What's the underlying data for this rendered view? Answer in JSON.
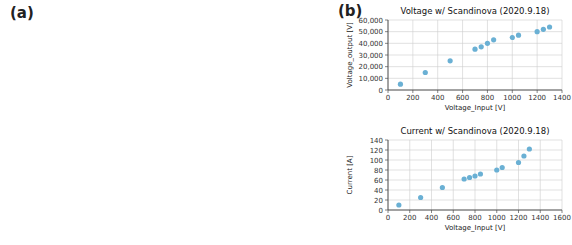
{
  "chart_data": [
    {
      "type": "scatter",
      "title": "Voltage w/ Scandinova (2020.9.18)",
      "annotations": [
        "(a)",
        "(b)"
      ],
      "x_label": "Voltage_Input [V]",
      "y_label": "Voltage_output [V]",
      "x": [
        100,
        300,
        500,
        700,
        750,
        800,
        850,
        1000,
        1050,
        1200,
        1250,
        1300
      ],
      "values": [
        5000,
        15000,
        25000,
        35000,
        37000,
        40000,
        43000,
        45000,
        47000,
        50000,
        52000,
        54000
      ],
      "color": "#6ab0d4",
      "marker": "circle",
      "grid": true,
      "xlim": [
        0,
        1400
      ],
      "ylim": [
        0,
        60000
      ],
      "xticks": [
        0,
        200,
        400,
        600,
        800,
        1000,
        1200,
        1400
      ],
      "yticks": [
        0,
        {
          "value": 10000,
          "label": "10,000"
        },
        {
          "value": 20000,
          "label": "20,000"
        },
        {
          "value": 30000,
          "label": "30,000"
        },
        {
          "value": 40000,
          "label": "40,000"
        },
        {
          "value": 50000,
          "label": "50,000"
        },
        {
          "value": 60000,
          "label": "60,000"
        }
      ]
    },
    {
      "type": "scatter",
      "title": "Current w/ Scandinova (2020.9.18)",
      "x_label": "Voltage_Input [V]",
      "y_label": "Current [A]",
      "x": [
        100,
        300,
        500,
        700,
        750,
        800,
        850,
        1000,
        1050,
        1200,
        1250,
        1300
      ],
      "values": [
        10,
        25,
        45,
        62,
        65,
        68,
        72,
        80,
        85,
        95,
        108,
        122
      ],
      "color": "#6ab0d4",
      "marker": "circle",
      "grid": true,
      "xlim": [
        0,
        1600
      ],
      "ylim": [
        0,
        140
      ],
      "xticks": [
        0,
        200,
        400,
        600,
        800,
        1000,
        1200,
        1400,
        1600
      ],
      "yticks": [
        0,
        20,
        40,
        60,
        80,
        100,
        120,
        140
      ]
    }
  ]
}
